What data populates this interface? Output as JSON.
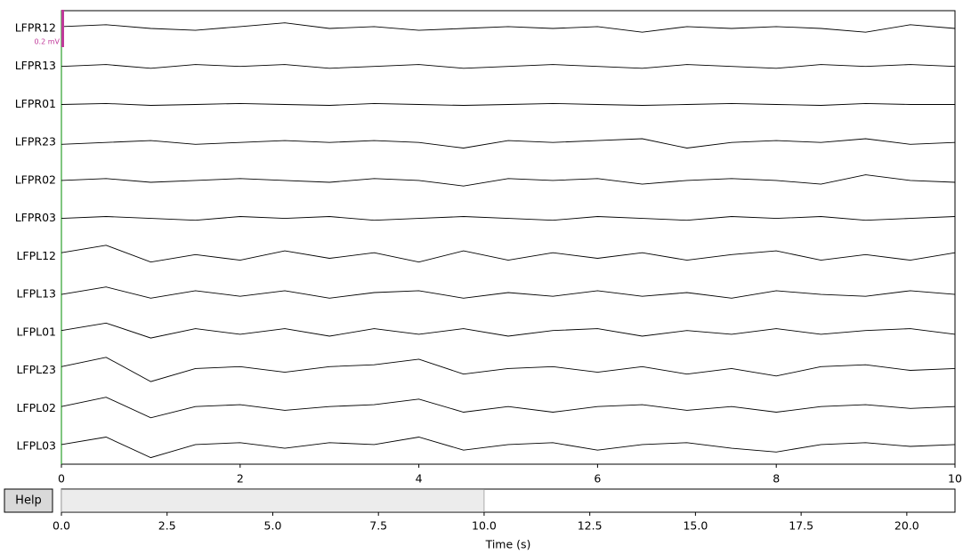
{
  "channels": [
    "LFPR12",
    "LFPR13",
    "LFPR01",
    "LFPR23",
    "LFPR02",
    "LFPR03",
    "LFPL12",
    "LFPL13",
    "LFPL01",
    "LFPL23",
    "LFPL02",
    "LFPL03"
  ],
  "scale_bar": {
    "value": 0.2,
    "label": "0.2 mV"
  },
  "time_axis": {
    "lim": [
      0,
      10
    ],
    "ticks": [
      0,
      2,
      4,
      6,
      8,
      10
    ]
  },
  "traces": {
    "x": [
      0,
      0.5,
      1,
      1.5,
      2,
      2.5,
      3,
      3.5,
      4,
      4.5,
      5,
      5.5,
      6,
      6.5,
      7,
      7.5,
      8,
      8.5,
      9,
      9.5,
      10
    ],
    "series": [
      [
        0.01,
        0.02,
        0,
        -0.01,
        0.01,
        0.03,
        0,
        0.01,
        -0.01,
        0,
        0.01,
        0,
        0.01,
        -0.02,
        0.01,
        0,
        0.01,
        0,
        -0.02,
        0.02,
        0
      ],
      [
        0,
        0.01,
        -0.01,
        0.01,
        0,
        0.01,
        -0.01,
        0,
        0.01,
        -0.01,
        0,
        0.01,
        0,
        -0.01,
        0.01,
        0,
        -0.01,
        0.01,
        0,
        0.01,
        0
      ],
      [
        0,
        0.005,
        -0.005,
        0,
        0.005,
        0,
        -0.005,
        0.005,
        0,
        -0.005,
        0,
        0.005,
        0,
        -0.005,
        0,
        0.005,
        0,
        -0.005,
        0.005,
        0,
        0
      ],
      [
        -0.01,
        0,
        0.01,
        -0.01,
        0,
        0.01,
        0,
        0.01,
        0,
        -0.03,
        0.01,
        0,
        0.01,
        0.02,
        -0.03,
        0,
        0.01,
        0,
        0.02,
        -0.01,
        0
      ],
      [
        0,
        0.01,
        -0.01,
        0,
        0.01,
        0,
        -0.01,
        0.01,
        0,
        -0.03,
        0.01,
        0,
        0.01,
        -0.02,
        0,
        0.01,
        0,
        -0.02,
        0.03,
        0,
        -0.01
      ],
      [
        0,
        0.01,
        0,
        -0.01,
        0.01,
        0,
        0.01,
        -0.01,
        0,
        0.01,
        0,
        -0.01,
        0.01,
        0,
        -0.01,
        0.01,
        0,
        0.01,
        -0.01,
        0,
        0.01
      ],
      [
        0.02,
        0.06,
        -0.03,
        0.01,
        -0.02,
        0.03,
        -0.01,
        0.02,
        -0.03,
        0.03,
        -0.02,
        0.02,
        -0.01,
        0.02,
        -0.02,
        0.01,
        0.03,
        -0.02,
        0.01,
        -0.02,
        0.02
      ],
      [
        0,
        0.04,
        -0.02,
        0.02,
        -0.01,
        0.02,
        -0.02,
        0.01,
        0.02,
        -0.02,
        0.01,
        -0.01,
        0.02,
        -0.01,
        0.01,
        -0.02,
        0.02,
        0,
        -0.01,
        0.02,
        0
      ],
      [
        0.01,
        0.05,
        -0.03,
        0.02,
        -0.01,
        0.02,
        -0.02,
        0.02,
        -0.01,
        0.02,
        -0.02,
        0.01,
        0.02,
        -0.02,
        0.01,
        -0.01,
        0.02,
        -0.01,
        0.01,
        0.02,
        -0.01
      ],
      [
        0.02,
        0.07,
        -0.06,
        0.01,
        0.02,
        -0.01,
        0.02,
        0.03,
        0.06,
        -0.02,
        0.01,
        0.02,
        -0.01,
        0.02,
        -0.02,
        0.01,
        -0.03,
        0.02,
        0.03,
        0,
        0.01
      ],
      [
        0.01,
        0.06,
        -0.05,
        0.01,
        0.02,
        -0.01,
        0.01,
        0.02,
        0.05,
        -0.02,
        0.01,
        -0.02,
        0.01,
        0.02,
        -0.01,
        0.01,
        -0.02,
        0.01,
        0.02,
        0,
        0.01
      ],
      [
        0.01,
        0.05,
        -0.06,
        0.01,
        0.02,
        -0.01,
        0.02,
        0.01,
        0.05,
        -0.02,
        0.01,
        0.02,
        -0.02,
        0.01,
        0.02,
        -0.01,
        -0.03,
        0.01,
        0.02,
        0,
        0.01
      ]
    ]
  },
  "help_button": "Help",
  "scrollbar": {
    "lim": [
      0,
      21.14
    ],
    "window": [
      0,
      10
    ],
    "ticks": [
      {
        "value": 0,
        "label": "0.0"
      },
      {
        "value": 2.5,
        "label": "2.5"
      },
      {
        "value": 5,
        "label": "5.0"
      },
      {
        "value": 7.5,
        "label": "7.5"
      },
      {
        "value": 10,
        "label": "10.0"
      },
      {
        "value": 12.5,
        "label": "12.5"
      },
      {
        "value": 15,
        "label": "15.0"
      },
      {
        "value": 17.5,
        "label": "17.5"
      },
      {
        "value": 20,
        "label": "20.0"
      }
    ],
    "label": "Time (s)"
  }
}
